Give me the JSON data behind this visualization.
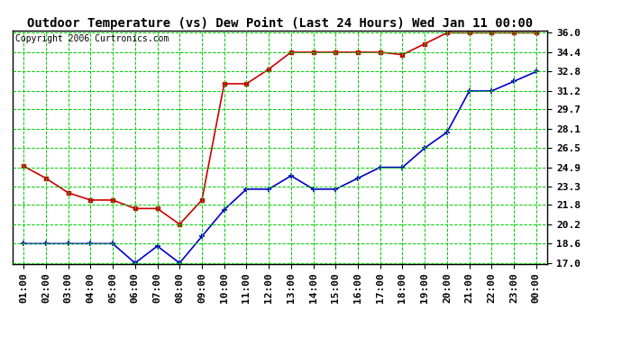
{
  "title": "Outdoor Temperature (vs) Dew Point (Last 24 Hours) Wed Jan 11 00:00",
  "copyright": "Copyright 2006 Curtronics.com",
  "x_labels": [
    "01:00",
    "02:00",
    "03:00",
    "04:00",
    "05:00",
    "06:00",
    "07:00",
    "08:00",
    "09:00",
    "10:00",
    "11:00",
    "12:00",
    "13:00",
    "14:00",
    "15:00",
    "16:00",
    "17:00",
    "18:00",
    "19:00",
    "20:00",
    "21:00",
    "22:00",
    "23:00",
    "00:00"
  ],
  "red_data": [
    25.0,
    24.0,
    22.8,
    22.2,
    22.2,
    21.5,
    21.5,
    20.2,
    22.2,
    31.8,
    31.8,
    33.0,
    34.4,
    34.4,
    34.4,
    34.4,
    34.4,
    34.2,
    35.1,
    36.0,
    36.0,
    36.0,
    36.0,
    36.0
  ],
  "blue_data": [
    18.6,
    18.6,
    18.6,
    18.6,
    18.6,
    17.0,
    18.4,
    17.0,
    19.2,
    21.4,
    23.1,
    23.1,
    24.2,
    23.1,
    23.1,
    24.0,
    24.9,
    24.9,
    26.5,
    27.8,
    31.2,
    31.2,
    32.0,
    32.8
  ],
  "y_ticks": [
    17.0,
    18.6,
    20.2,
    21.8,
    23.3,
    24.9,
    26.5,
    28.1,
    29.7,
    31.2,
    32.8,
    34.4,
    36.0
  ],
  "y_min": 17.0,
  "y_max": 36.0,
  "red_color": "#cc0000",
  "blue_color": "#0000cc",
  "bg_color": "#ffffff",
  "plot_bg_color": "#ffffff",
  "grid_color": "#00cc00",
  "title_fontsize": 10,
  "copyright_fontsize": 7,
  "tick_fontsize": 8
}
